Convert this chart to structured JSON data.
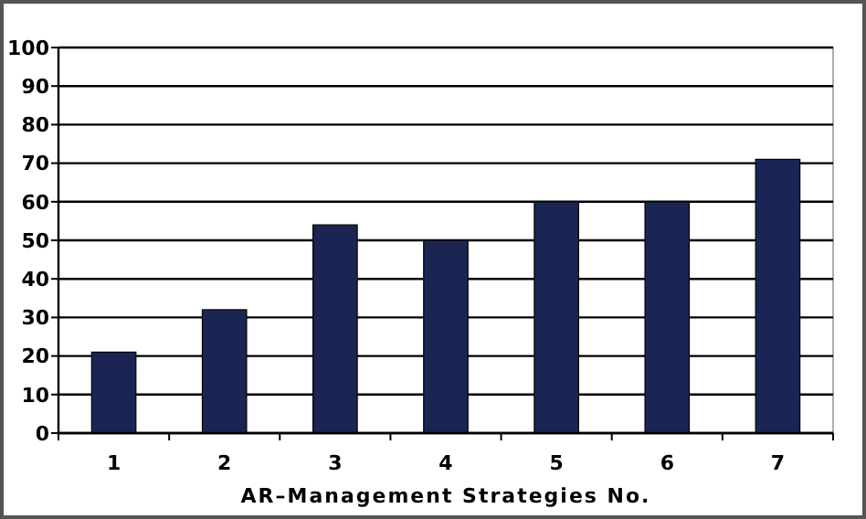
{
  "chart_data": {
    "type": "bar",
    "xlabel": "AR–Management Strategies No.",
    "categories": [
      "1",
      "2",
      "3",
      "4",
      "5",
      "6",
      "7"
    ],
    "values": [
      21,
      32,
      54,
      50,
      60,
      60,
      71
    ],
    "color": "#1b2554",
    "ylim": [
      0,
      100
    ],
    "yticks": [
      0,
      10,
      20,
      30,
      40,
      50,
      60,
      70,
      80,
      90,
      100
    ],
    "grid": "y"
  }
}
